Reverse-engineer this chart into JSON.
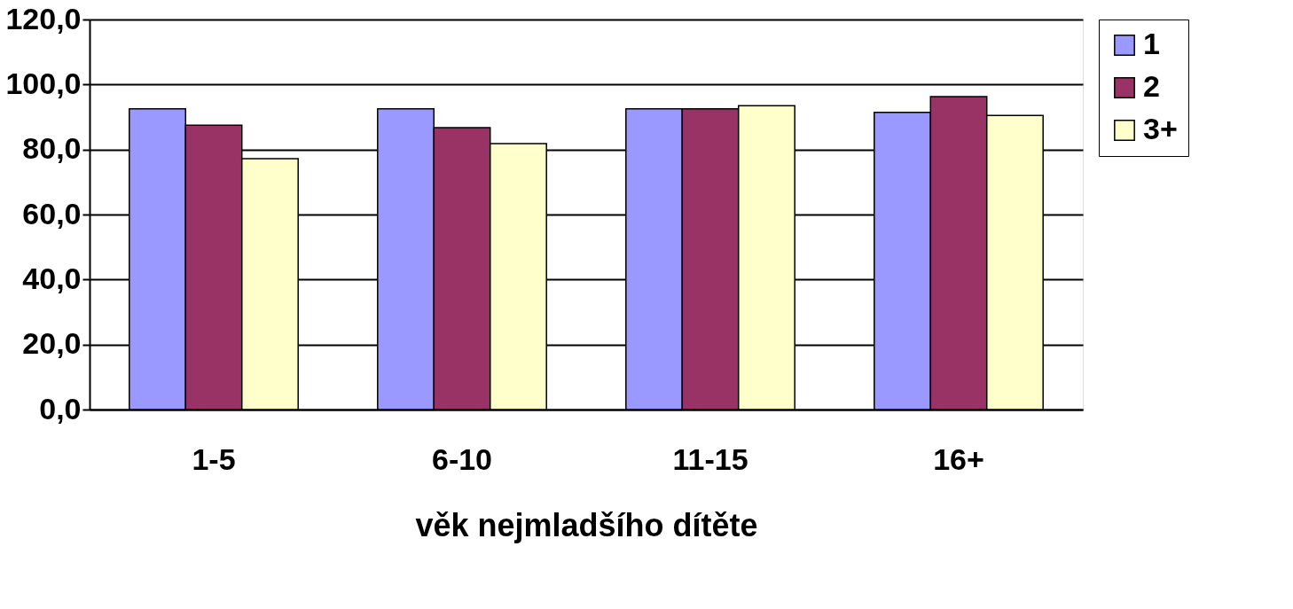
{
  "chart_data": {
    "type": "bar",
    "xlabel": "věk nejmladšího dítěte",
    "categories": [
      "1-5",
      "6-10",
      "11-15",
      "16+"
    ],
    "series": [
      {
        "name": "1",
        "color": "#9999ff",
        "values": [
          92.5,
          92.5,
          92.5,
          91.4
        ]
      },
      {
        "name": "2",
        "color": "#993366",
        "values": [
          87.5,
          86.7,
          92.5,
          96.3
        ]
      },
      {
        "name": "3+",
        "color": "#ffffcc",
        "values": [
          77.2,
          81.8,
          93.5,
          90.5
        ]
      }
    ],
    "ylim": [
      0,
      120
    ],
    "yticks": [
      {
        "value": 0,
        "label": "0,0"
      },
      {
        "value": 20,
        "label": "20,0"
      },
      {
        "value": 40,
        "label": "40,0"
      },
      {
        "value": 60,
        "label": "60,0"
      },
      {
        "value": 80,
        "label": "80,0"
      },
      {
        "value": 100,
        "label": "100,0"
      },
      {
        "value": 120,
        "label": "120,0"
      }
    ],
    "grid": "y",
    "legend": "right"
  }
}
